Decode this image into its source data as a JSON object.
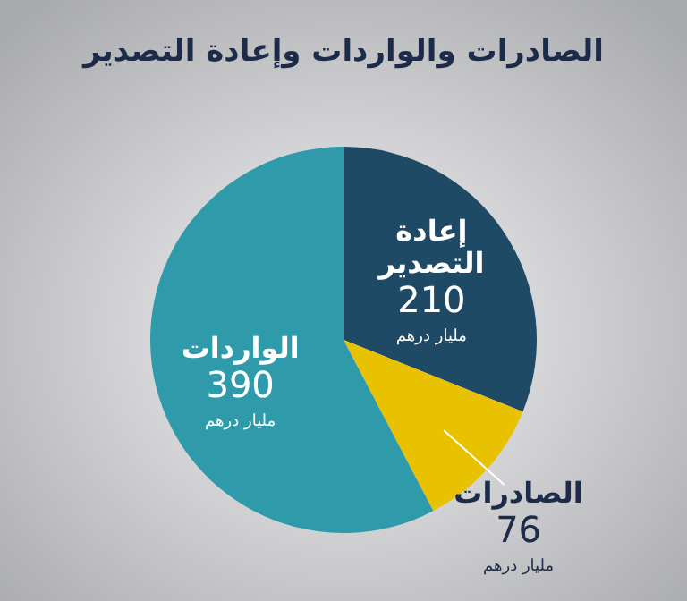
{
  "chart_data": {
    "type": "pie",
    "title": "الصادرات والواردات وإعادة التصدير",
    "categories": [
      "إعادة التصدير",
      "الصادرات",
      "الواردات"
    ],
    "values": [
      210,
      76,
      390
    ],
    "colors": [
      "#1f4a66",
      "#e8c200",
      "#2f9aaa"
    ],
    "data_labels": true,
    "annotations": [
      {
        "text": "مليار درهم",
        "x": "إعادة التصدير"
      },
      {
        "text": "مليار درهم",
        "x": "الصادرات"
      },
      {
        "text": "مليار درهم",
        "x": "الواردات"
      }
    ]
  }
}
